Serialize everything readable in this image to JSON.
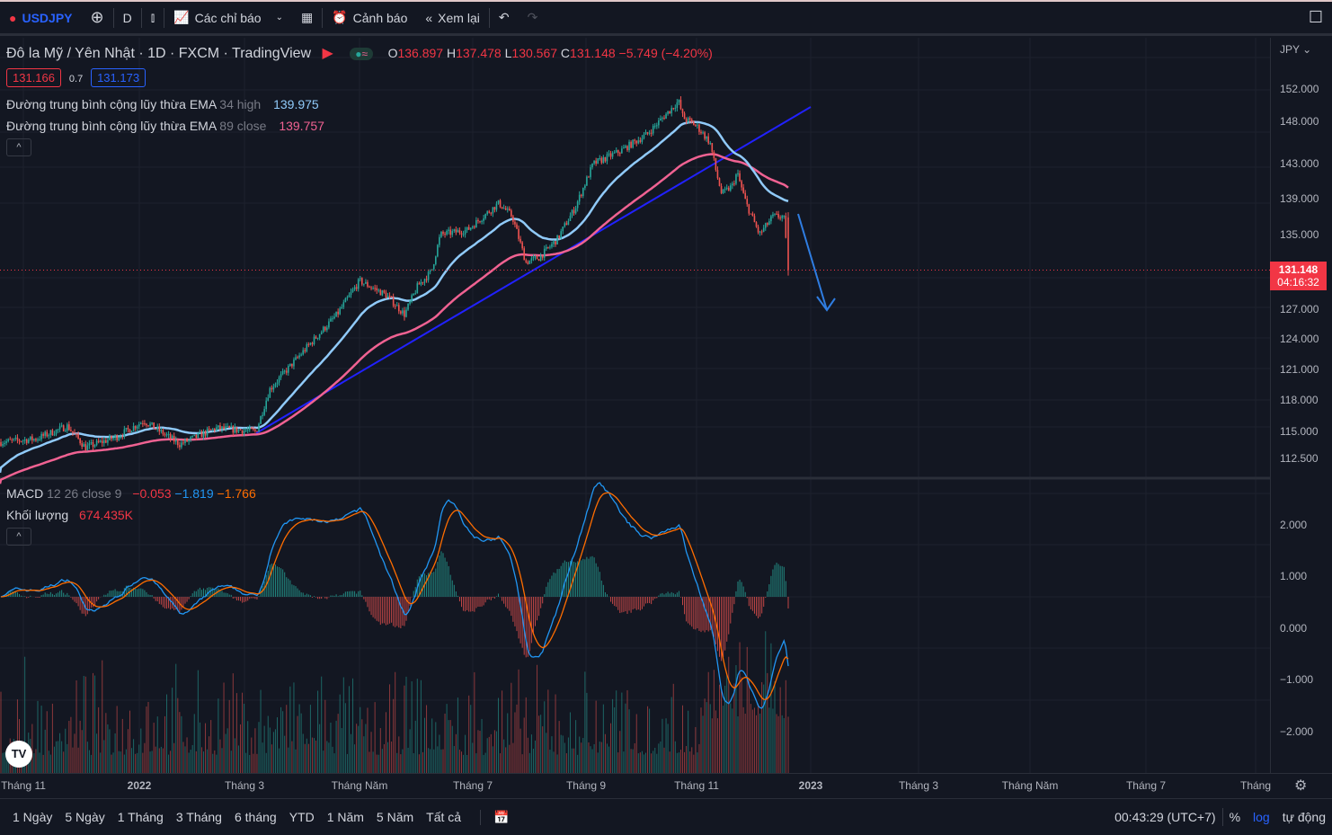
{
  "toolbar": {
    "symbol": "USDJPY",
    "interval": "D",
    "indicators": "Các chỉ báo",
    "alerts": "Cảnh báo",
    "replay": "Xem lại"
  },
  "legend": {
    "title": "Đô la Mỹ / Yên Nhật · 1D · FXCM · TradingView",
    "o_label": "O",
    "o": "136.897",
    "h_label": "H",
    "h": "137.478",
    "l_label": "L",
    "l": "130.567",
    "c_label": "C",
    "c": "131.148",
    "change": "−5.749 (−4.20%)",
    "bid": "131.166",
    "spread": "0.7",
    "ask": "131.173",
    "ema1_name": "Đường trung bình cộng lũy thừa EMA",
    "ema1_params": "34 high",
    "ema1_value": "139.975",
    "ema2_name": "Đường trung bình cộng lũy thừa EMA",
    "ema2_params": "89 close",
    "ema2_value": "139.757"
  },
  "macd": {
    "name": "MACD",
    "params": "12 26 close 9",
    "hist": "−0.053",
    "macd": "−1.819",
    "signal": "−1.766",
    "volume_name": "Khối lượng",
    "volume": "674.435K"
  },
  "price_axis": {
    "currency": "JPY",
    "labels": [
      "152.000",
      "148.000",
      "143.000",
      "139.000",
      "135.000",
      "127.000",
      "124.000",
      "121.000",
      "118.000",
      "115.000",
      "112.500"
    ],
    "last_price": "131.148",
    "countdown": "04:16:32"
  },
  "macd_axis": {
    "labels": [
      "2.000",
      "1.000",
      "0.000",
      "−1.000",
      "−2.000"
    ]
  },
  "time_axis": [
    "Tháng 11",
    "2022",
    "Tháng 3",
    "Tháng Năm",
    "Tháng 7",
    "Tháng 9",
    "Tháng 11",
    "2023",
    "Tháng 3",
    "Tháng Năm",
    "Tháng 7",
    "Tháng"
  ],
  "bottom": {
    "ranges": [
      "1 Ngày",
      "5 Ngày",
      "1 Tháng",
      "3 Tháng",
      "6 tháng",
      "YTD",
      "1 Năm",
      "5 Năm",
      "Tất cả"
    ],
    "clock": "00:43:29 (UTC+7)",
    "percent": "%",
    "log": "log",
    "auto": "tự động"
  },
  "colors": {
    "up": "#26a69a",
    "down": "#ef5350",
    "ema34": "#90caf9",
    "ema89": "#f06292",
    "trend": "#2121ff"
  },
  "price_path": [
    [
      0,
      114
    ],
    [
      40,
      114.3
    ],
    [
      75,
      115.5
    ],
    [
      95,
      113.5
    ],
    [
      130,
      114.5
    ],
    [
      160,
      116
    ],
    [
      200,
      113.8
    ],
    [
      240,
      115.3
    ],
    [
      285,
      115
    ],
    [
      300,
      119
    ],
    [
      330,
      122
    ],
    [
      345,
      123.5
    ],
    [
      375,
      126.5
    ],
    [
      400,
      130
    ],
    [
      430,
      128.5
    ],
    [
      450,
      126.5
    ],
    [
      465,
      129.5
    ],
    [
      480,
      131
    ],
    [
      490,
      135
    ],
    [
      520,
      135.5
    ],
    [
      555,
      138.5
    ],
    [
      570,
      137
    ],
    [
      585,
      132
    ],
    [
      600,
      132.5
    ],
    [
      620,
      134.5
    ],
    [
      640,
      138
    ],
    [
      660,
      143
    ],
    [
      690,
      144.5
    ],
    [
      720,
      146.5
    ],
    [
      755,
      150.5
    ],
    [
      760,
      148.5
    ],
    [
      775,
      147.5
    ],
    [
      790,
      145.5
    ],
    [
      797,
      142
    ],
    [
      803,
      139.5
    ],
    [
      815,
      140.5
    ],
    [
      820,
      142
    ],
    [
      830,
      138.5
    ],
    [
      845,
      135
    ],
    [
      860,
      137
    ],
    [
      872,
      137
    ],
    [
      877,
      131.1
    ]
  ]
}
